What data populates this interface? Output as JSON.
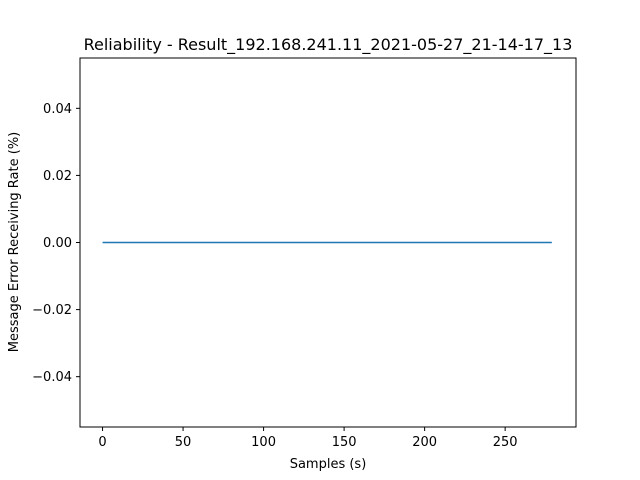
{
  "chart_data": {
    "type": "line",
    "title": "Reliability - Result_192.168.241.11_2021-05-27_21-14-17_13",
    "xlabel": "Samples (s)",
    "ylabel": "Message Error Receiving Rate (%)",
    "xlim": [
      -14,
      294
    ],
    "ylim": [
      -0.055,
      0.055
    ],
    "xticks": [
      0,
      50,
      100,
      150,
      200,
      250
    ],
    "yticks": [
      -0.04,
      -0.02,
      0.0,
      0.02,
      0.04
    ],
    "xtick_labels": [
      "0",
      "50",
      "100",
      "150",
      "200",
      "250"
    ],
    "ytick_labels": [
      "−0.04",
      "−0.02",
      "0.00",
      "0.02",
      "0.04"
    ],
    "grid": false,
    "series": [
      {
        "color": "#1f77b4",
        "x": [
          0,
          279
        ],
        "y": [
          0,
          0
        ]
      }
    ]
  }
}
